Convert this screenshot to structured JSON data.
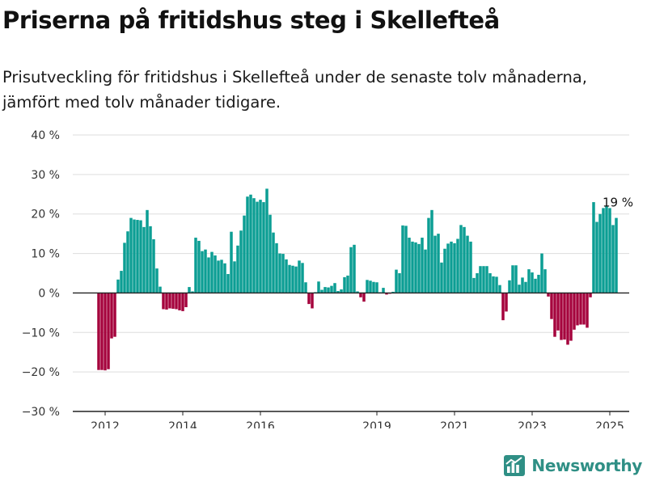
{
  "header": {
    "title": "Priserna på fritidshus steg i Skellefteå",
    "subtitle": "Prisutveckling för fritidshus i Skellefteå under de senaste tolv månaderna, jämfört med tolv månader tidigare."
  },
  "brand": {
    "name": "Newsworthy",
    "icon": "newsworthy-logo-icon",
    "color": "#2f8f85"
  },
  "colors": {
    "positive": "#0c9e94",
    "negative": "#a5033d",
    "grid": "#dddddd",
    "zero_line": "#222222",
    "axis_text": "#333333"
  },
  "chart_data": {
    "type": "bar",
    "title": "Priserna på fritidshus steg i Skellefteå",
    "subtitle": "Prisutveckling för fritidshus i Skellefteå under de senaste tolv månaderna, jämfört med tolv månader tidigare.",
    "xlabel": "",
    "ylabel": "",
    "ylim": [
      -30,
      40
    ],
    "yticks": [
      -30,
      -20,
      -10,
      0,
      10,
      20,
      30,
      40
    ],
    "ytick_labels": [
      "−30 %",
      "−20 %",
      "−10 %",
      "0 %",
      "10 %",
      "20 %",
      "30 %",
      "40 %"
    ],
    "xtick_labels": [
      "2012",
      "2014",
      "2016",
      "2019",
      "2021",
      "2023",
      "2025"
    ],
    "xtick_positions": [
      "2012-01",
      "2014-01",
      "2016-01",
      "2019-01",
      "2021-01",
      "2023-01",
      "2025-01"
    ],
    "x_start": "2011-11",
    "grid": true,
    "legend": "none",
    "annotation": {
      "text": "19 %",
      "at": "2025-03"
    },
    "x": [
      "2011-11",
      "2011-12",
      "2012-01",
      "2012-02",
      "2012-03",
      "2012-04",
      "2012-05",
      "2012-06",
      "2012-07",
      "2012-08",
      "2012-09",
      "2012-10",
      "2012-11",
      "2012-12",
      "2013-01",
      "2013-02",
      "2013-03",
      "2013-04",
      "2013-05",
      "2013-06",
      "2013-07",
      "2013-08",
      "2013-09",
      "2013-10",
      "2013-11",
      "2013-12",
      "2014-01",
      "2014-02",
      "2014-03",
      "2014-04",
      "2014-05",
      "2014-06",
      "2014-07",
      "2014-08",
      "2014-09",
      "2014-10",
      "2014-11",
      "2014-12",
      "2015-01",
      "2015-02",
      "2015-03",
      "2015-04",
      "2015-05",
      "2015-06",
      "2015-07",
      "2015-08",
      "2015-09",
      "2015-10",
      "2015-11",
      "2015-12",
      "2016-01",
      "2016-02",
      "2016-03",
      "2016-04",
      "2016-05",
      "2016-06",
      "2016-07",
      "2016-08",
      "2016-09",
      "2016-10",
      "2016-11",
      "2016-12",
      "2017-01",
      "2017-02",
      "2017-03",
      "2017-04",
      "2017-05",
      "2017-06",
      "2017-07",
      "2017-08",
      "2017-09",
      "2017-10",
      "2017-11",
      "2017-12",
      "2018-01",
      "2018-02",
      "2018-03",
      "2018-04",
      "2018-05",
      "2018-06",
      "2018-07",
      "2018-08",
      "2018-09",
      "2018-10",
      "2018-11",
      "2018-12",
      "2019-01",
      "2019-02",
      "2019-03",
      "2019-04",
      "2019-05",
      "2019-06",
      "2019-07",
      "2019-08",
      "2019-09",
      "2019-10",
      "2019-11",
      "2019-12",
      "2020-01",
      "2020-02",
      "2020-03",
      "2020-04",
      "2020-05",
      "2020-06",
      "2020-07",
      "2020-08",
      "2020-09",
      "2020-10",
      "2020-11",
      "2020-12",
      "2021-01",
      "2021-02",
      "2021-03",
      "2021-04",
      "2021-05",
      "2021-06",
      "2021-07",
      "2021-08",
      "2021-09",
      "2021-10",
      "2021-11",
      "2021-12",
      "2022-01",
      "2022-02",
      "2022-03",
      "2022-04",
      "2022-05",
      "2022-06",
      "2022-07",
      "2022-08",
      "2022-09",
      "2022-10",
      "2022-11",
      "2022-12",
      "2023-01",
      "2023-02",
      "2023-03",
      "2023-04",
      "2023-05",
      "2023-06",
      "2023-07",
      "2023-08",
      "2023-09",
      "2023-10",
      "2023-11",
      "2023-12",
      "2024-01",
      "2024-02",
      "2024-03",
      "2024-04",
      "2024-05",
      "2024-06",
      "2024-07",
      "2024-08",
      "2024-09",
      "2024-10",
      "2024-11",
      "2024-12",
      "2025-01",
      "2025-02",
      "2025-03"
    ],
    "values": [
      -19.5,
      -19.5,
      -19.6,
      -19.3,
      -11.5,
      -11.1,
      3.4,
      5.6,
      12.7,
      15.6,
      19.0,
      18.6,
      18.5,
      18.4,
      16.7,
      21.0,
      16.9,
      13.6,
      6.2,
      1.6,
      -4.1,
      -4.2,
      -3.9,
      -4.0,
      -4.1,
      -4.4,
      -4.6,
      -3.6,
      1.5,
      0.4,
      14.0,
      13.2,
      10.6,
      11.0,
      9.0,
      10.4,
      9.5,
      8.2,
      8.4,
      7.5,
      4.8,
      15.5,
      8.0,
      12.0,
      15.8,
      19.6,
      24.4,
      24.9,
      24.0,
      23.1,
      23.6,
      23.0,
      26.4,
      19.8,
      15.3,
      12.6,
      10.0,
      9.9,
      8.5,
      7.1,
      6.9,
      6.7,
      8.2,
      7.6,
      2.7,
      -2.8,
      -3.9,
      0.2,
      2.9,
      0.8,
      1.5,
      1.4,
      1.8,
      2.5,
      0.5,
      0.9,
      4.0,
      4.4,
      11.6,
      12.2,
      0.4,
      -1.1,
      -2.2,
      3.3,
      3.1,
      2.8,
      2.7,
      0.2,
      1.3,
      -0.4,
      -0.2,
      0.3,
      5.9,
      5.0,
      17.1,
      17.0,
      14.0,
      13.0,
      12.8,
      12.4,
      14.0,
      11.0,
      19.0,
      21.0,
      14.5,
      15.0,
      7.7,
      11.2,
      12.5,
      13.0,
      12.6,
      13.7,
      17.2,
      16.7,
      14.5,
      13.0,
      3.8,
      5.0,
      6.8,
      6.8,
      6.8,
      5.0,
      4.2,
      4.1,
      2.0,
      -6.9,
      -4.7,
      3.2,
      7.0,
      7.0,
      2.1,
      3.9,
      2.8,
      6.0,
      5.2,
      3.6,
      4.6,
      10.0,
      6.0,
      -0.9,
      -6.6,
      -11.1,
      -9.5,
      -11.9,
      -11.8,
      -13.1,
      -12.1,
      -9.3,
      -8.2,
      -8.0,
      -8.0,
      -8.8,
      -1.1,
      23.0,
      18.0,
      20.0,
      21.5,
      21.9,
      21.5,
      17.2,
      19.0
    ]
  }
}
